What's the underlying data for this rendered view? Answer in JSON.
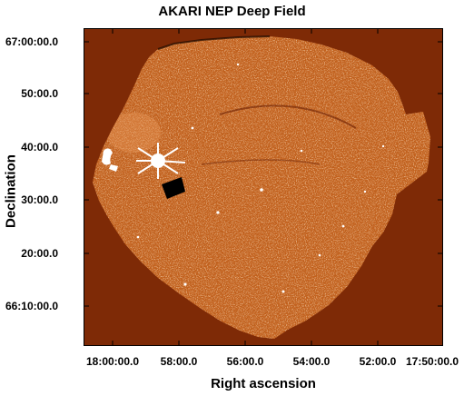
{
  "title": "AKARI NEP Deep Field",
  "xlabel": "Right ascension",
  "ylabel": "Declination",
  "y_ticks": [
    "67:00:00.0",
    "50:00.0",
    "40:00.0",
    "30:00.0",
    "20:00.0",
    "66:10:00.0"
  ],
  "x_ticks": [
    "18:00:00.0",
    "58:00.0",
    "56:00.0",
    "54:00.0",
    "52:00.0",
    "17:50:00.0"
  ],
  "colors": {
    "background": "#7e2a06",
    "field": "#c8621e",
    "artifact": "#ffffff"
  }
}
